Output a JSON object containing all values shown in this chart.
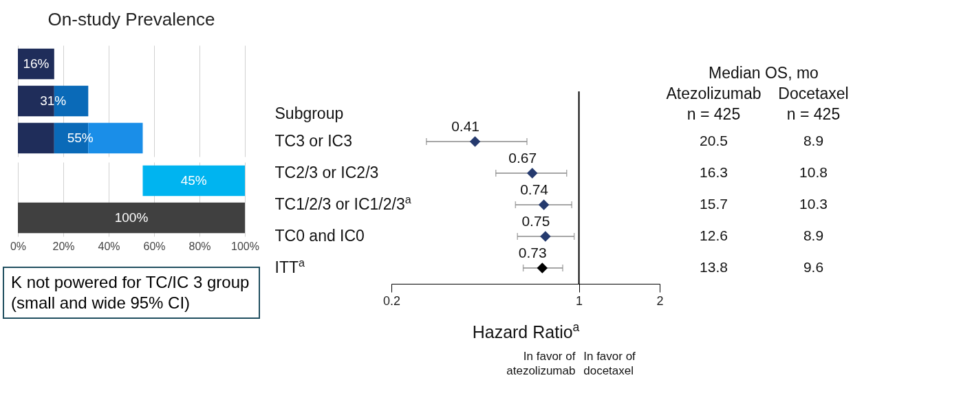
{
  "chart_data": [
    {
      "type": "bar",
      "title": "On-study Prevalence",
      "orientation": "horizontal",
      "stacked": true,
      "categories": [
        null,
        null,
        null
      ],
      "series": [
        {
          "color": "#1f2d5a",
          "values": [
            16,
            16,
            16
          ]
        },
        {
          "color": "#0a6ab8",
          "values": [
            null,
            15,
            15
          ]
        },
        {
          "color": "#1a8ee8",
          "values": [
            null,
            null,
            24
          ]
        }
      ],
      "totals": [
        "16%",
        "31%",
        "55%"
      ],
      "xlim": [
        0,
        100
      ],
      "xticks": [
        0,
        20,
        40,
        60,
        80,
        100
      ],
      "grid": "x",
      "tick_labels": false
    },
    {
      "type": "bar",
      "orientation": "horizontal",
      "categories": [
        null,
        null
      ],
      "values": [
        45,
        100
      ],
      "base": [
        55,
        0
      ],
      "colors": [
        "#00b4f0",
        "#404040"
      ],
      "value_labels": [
        "45%",
        "100%"
      ],
      "xlim": [
        0,
        100
      ],
      "xticks": [
        {
          "value": 0,
          "label": "0%"
        },
        {
          "value": 20,
          "label": "20%"
        },
        {
          "value": 40,
          "label": "40%"
        },
        {
          "value": 60,
          "label": "60%"
        },
        {
          "value": 80,
          "label": "80%"
        },
        {
          "value": 100,
          "label": "100%"
        }
      ],
      "grid": "x",
      "annotations": [
        "K not powered for TC/IC 3 group (small and wide 95% CI)"
      ]
    },
    {
      "type": "scatter",
      "orientation": "horizontal",
      "ylabel": "Subgroup",
      "xlabel": "Hazard Ratio$^{a}$",
      "categories": [
        "TC3 or IC3",
        "TC2/3 or IC2/3",
        "TC1/2/3 or IC1/2/3$^{a}$",
        "TC0 and IC0",
        "ITT$^{a}$"
      ],
      "values": [
        0.41,
        0.67,
        0.74,
        0.75,
        0.73
      ],
      "errors": [
        [
          0.27,
          0.64
        ],
        [
          0.49,
          0.9
        ],
        [
          0.58,
          0.94
        ],
        [
          0.59,
          0.96
        ],
        [
          0.62,
          0.87
        ]
      ],
      "colors": [
        "#253a6e",
        "#253a6e",
        "#253a6e",
        "#253a6e",
        "#000000"
      ],
      "marker": "diamond",
      "data_labels": true,
      "log": "x",
      "grid": false,
      "xlim": [
        0.2,
        2
      ],
      "xticks": [
        0.2,
        1,
        2
      ],
      "ref_lines": [
        {
          "axis": "x",
          "value": 1,
          "color": "#000000"
        }
      ],
      "annotations": [
        "Median OS, mo",
        "Atezolizumab",
        "Docetaxel",
        "n = 425",
        "n = 425",
        "20.5",
        "8.9",
        "16.3",
        "10.8",
        "15.7",
        "10.3",
        "12.6",
        "8.9",
        "13.8",
        "9.6",
        "In favor of atezolizumab",
        "In favor of docetaxel"
      ]
    }
  ]
}
